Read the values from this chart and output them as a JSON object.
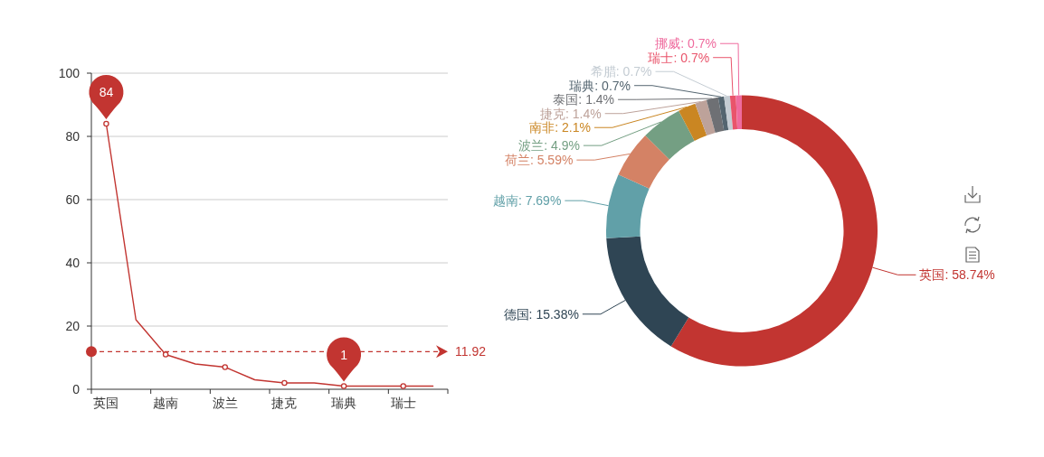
{
  "chart_data": [
    {
      "type": "line",
      "categories": [
        "英国",
        null,
        "越南",
        null,
        "波兰",
        null,
        "捷克",
        null,
        "瑞典",
        null,
        "瑞士",
        null
      ],
      "series": [
        {
          "color": "#c23531",
          "values": [
            84,
            22,
            11,
            8,
            7,
            3,
            2,
            2,
            1,
            1,
            1,
            1
          ]
        }
      ],
      "ylim": [
        0,
        100
      ],
      "yticks": [
        0,
        20,
        40,
        60,
        80,
        100
      ],
      "grid": "y",
      "marker": "circle",
      "annotations": [
        {
          "text": "84",
          "x": "英国",
          "y": 84
        },
        {
          "text": "1",
          "x": "瑞典",
          "y": 1
        }
      ],
      "ref_lines": [
        {
          "axis": "y",
          "value": 11.92,
          "label": "11.92",
          "color": "#c23531",
          "line_style": "dashed"
        }
      ]
    },
    {
      "type": "donut",
      "categories": [
        "英国",
        "德国",
        "越南",
        "荷兰",
        "波兰",
        "南非",
        "捷克",
        "泰国",
        "瑞典",
        "希腊",
        "瑞士",
        "挪威"
      ],
      "values": [
        58.74,
        15.38,
        7.69,
        5.59,
        4.9,
        2.1,
        1.4,
        1.4,
        0.7,
        0.7,
        0.7,
        0.7
      ],
      "value_labels": [
        ": 58.74%",
        ": 15.38%",
        ": 7.69%",
        ": 5.59%",
        ": 4.9%",
        ": 2.1%",
        ": 1.4%",
        ": 1.4%",
        ": 0.7%",
        ": 0.7%",
        ": 0.7%",
        ": 0.7%"
      ],
      "colors": [
        "#c23531",
        "#2f4554",
        "#61a0a8",
        "#d48265",
        "#749f83",
        "#ca8622",
        "#bda29a",
        "#6e7074",
        "#546570",
        "#c4ccd3",
        "#e9546b",
        "#ef6b9e"
      ]
    }
  ]
}
